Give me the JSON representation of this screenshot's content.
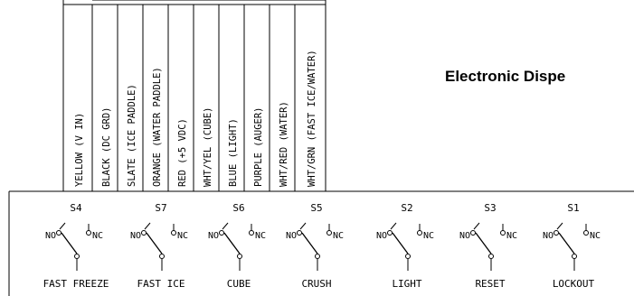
{
  "title": "Electronic Dispe",
  "wires": [
    "YELLOW (V IN)",
    "BLACK (DC GRD)",
    "SLATE (ICE PADDLE)",
    "ORANGE (WATER PADDLE)",
    "RED (+5 VDC)",
    "WHT/YEL (CUBE)",
    "BLUE (LIGHT)",
    "PURPLE (AUGER)",
    "WHT/RED (WATER)",
    "WHT/GRN (FAST ICE/WATER)"
  ],
  "switches": [
    {
      "code": "S4",
      "no": "NO",
      "nc": "NC",
      "name": "FAST FREEZE"
    },
    {
      "code": "S7",
      "no": "NO",
      "nc": "NC",
      "name": "FAST ICE"
    },
    {
      "code": "S6",
      "no": "NO",
      "nc": "NC",
      "name": "CUBE"
    },
    {
      "code": "S5",
      "no": "NO",
      "nc": "NC",
      "name": "CRUSH"
    },
    {
      "code": "S2",
      "no": "NO",
      "nc": "NC",
      "name": "LIGHT"
    },
    {
      "code": "S3",
      "no": "NO",
      "nc": "NC",
      "name": "RESET"
    },
    {
      "code": "S1",
      "no": "NO",
      "nc": "NC",
      "name": "LOCKOUT"
    }
  ]
}
